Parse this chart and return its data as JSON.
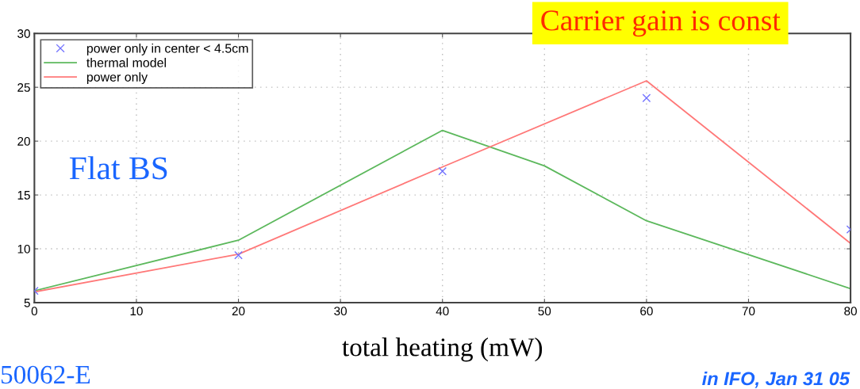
{
  "chart_data": {
    "type": "line",
    "xlabel": "total heating (mW)",
    "x": [
      0,
      20,
      40,
      50,
      60,
      80
    ],
    "series": [
      {
        "name": "power only in center < 4.5cm",
        "type": "scatter",
        "marker": "cross",
        "color": "#7373ff",
        "x": [
          0,
          20,
          40,
          60,
          80
        ],
        "values": [
          6.1,
          9.4,
          17.2,
          24.0,
          11.8
        ]
      },
      {
        "name": "thermal model",
        "color": "#5cb85c",
        "values": [
          6.1,
          10.8,
          21.0,
          17.7,
          12.6,
          6.3
        ]
      },
      {
        "name": "power only",
        "color": "#ff7878",
        "x": [
          0,
          20,
          40,
          60,
          80
        ],
        "values": [
          6.0,
          9.5,
          17.6,
          25.6,
          10.5
        ]
      }
    ],
    "xlim": [
      0,
      80
    ],
    "xticks": [
      0,
      10,
      20,
      30,
      40,
      50,
      60,
      70,
      80
    ],
    "ylim": [
      5,
      30
    ],
    "yticks": [
      5,
      10,
      15,
      20,
      25,
      30
    ],
    "grid": true,
    "legend": "top left",
    "annotations": [
      "Carrier gain is const",
      "Flat BS",
      "50062-E",
      "in IFO, Jan 31 05"
    ]
  }
}
